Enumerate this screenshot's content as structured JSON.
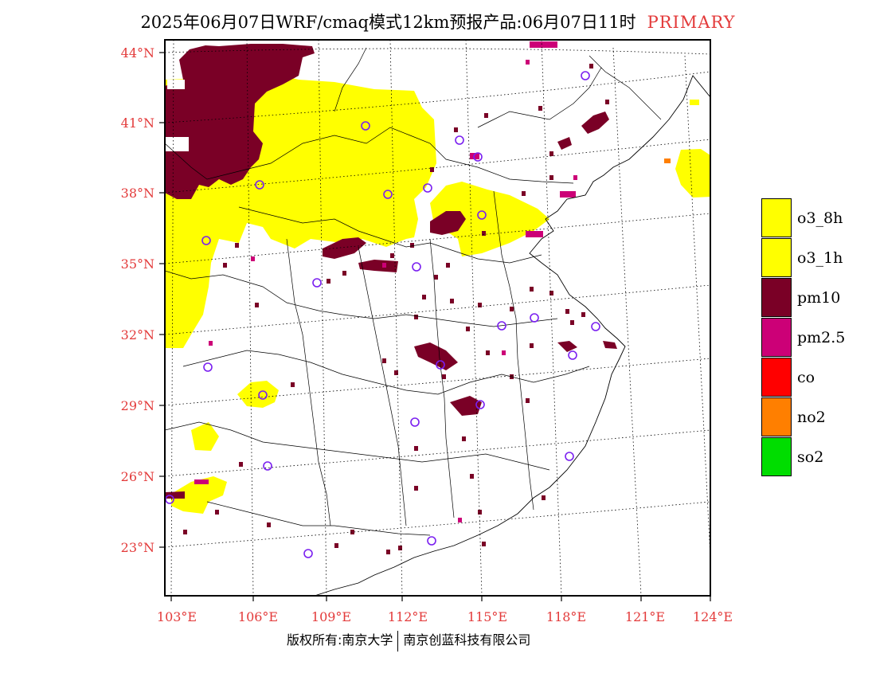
{
  "title": {
    "main": "2025年06月07日WRF/cmaq模式12km预报产品:06月07日11时",
    "product": "PRIMARY"
  },
  "axes": {
    "y_ticks": [
      "44°N",
      "41°N",
      "38°N",
      "35°N",
      "32°N",
      "29°N",
      "26°N",
      "23°N"
    ],
    "x_ticks": [
      "103°E",
      "106°E",
      "109°E",
      "112°E",
      "115°E",
      "118°E",
      "121°E",
      "124°E"
    ]
  },
  "legend": [
    {
      "label": "o3_8h",
      "color": "#ffff00"
    },
    {
      "label": "o3_1h",
      "color": "#ffff00"
    },
    {
      "label": "pm10",
      "color": "#7a0026"
    },
    {
      "label": "pm2.5",
      "color": "#cc0077"
    },
    {
      "label": "co",
      "color": "#ff0000"
    },
    {
      "label": "no2",
      "color": "#ff7f00"
    },
    {
      "label": "so2",
      "color": "#00dd00"
    }
  ],
  "colors": {
    "o3": "#ffff00",
    "pm10": "#7a0026",
    "pm25": "#cc0077",
    "no2": "#ff7f00",
    "station": "#7a1ff0",
    "tick_text": "#e33a3a"
  },
  "footer": {
    "left": "版权所有:南京大学",
    "right": "南京创蓝科技有限公司"
  }
}
